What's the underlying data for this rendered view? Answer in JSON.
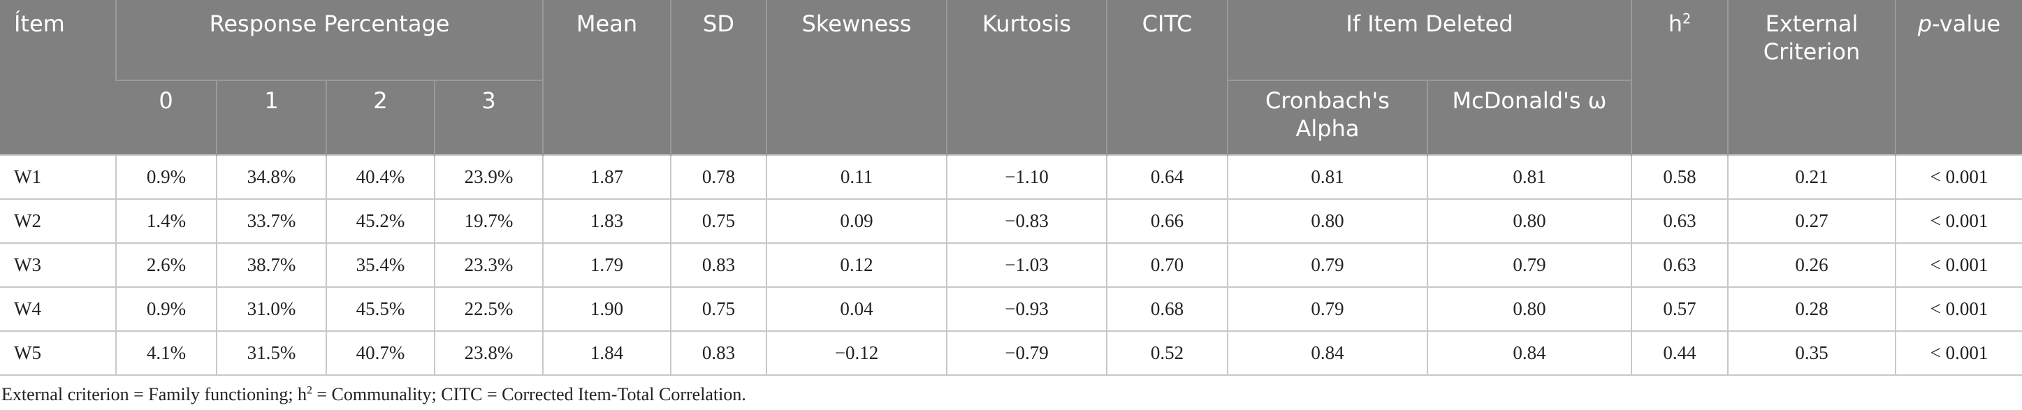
{
  "table": {
    "header": {
      "item": "Ítem",
      "response_percentage": "Response Percentage",
      "response_levels": [
        "0",
        "1",
        "2",
        "3"
      ],
      "mean": "Mean",
      "sd": "SD",
      "skewness": "Skewness",
      "kurtosis": "Kurtosis",
      "citc": "CITC",
      "if_item_deleted": "If Item Deleted",
      "cronbach": "Cronbach's Alpha",
      "mcdonald": "McDonald's ω",
      "h2": {
        "base": "h",
        "sup": "2"
      },
      "external_criterion": "External Criterion",
      "p_value": {
        "italic": "p",
        "rest": "-value"
      }
    },
    "rows": [
      [
        "W1",
        "0.9%",
        "34.8%",
        "40.4%",
        "23.9%",
        "1.87",
        "0.78",
        "0.11",
        "−1.10",
        "0.64",
        "0.81",
        "0.81",
        "0.58",
        "0.21",
        "< 0.001"
      ],
      [
        "W2",
        "1.4%",
        "33.7%",
        "45.2%",
        "19.7%",
        "1.83",
        "0.75",
        "0.09",
        "−0.83",
        "0.66",
        "0.80",
        "0.80",
        "0.63",
        "0.27",
        "< 0.001"
      ],
      [
        "W3",
        "2.6%",
        "38.7%",
        "35.4%",
        "23.3%",
        "1.79",
        "0.83",
        "0.12",
        "−1.03",
        "0.70",
        "0.79",
        "0.79",
        "0.63",
        "0.26",
        "< 0.001"
      ],
      [
        "W4",
        "0.9%",
        "31.0%",
        "45.5%",
        "22.5%",
        "1.90",
        "0.75",
        "0.04",
        "−0.93",
        "0.68",
        "0.79",
        "0.80",
        "0.57",
        "0.28",
        "< 0.001"
      ],
      [
        "W5",
        "4.1%",
        "31.5%",
        "40.7%",
        "23.8%",
        "1.84",
        "0.83",
        "−0.12",
        "−0.79",
        "0.52",
        "0.84",
        "0.84",
        "0.44",
        "0.35",
        "< 0.001"
      ]
    ]
  },
  "footnote": {
    "before": "External criterion = Family functioning; h",
    "sup": "2",
    "after": " = Communality; CITC = Corrected Item-Total Correlation."
  }
}
